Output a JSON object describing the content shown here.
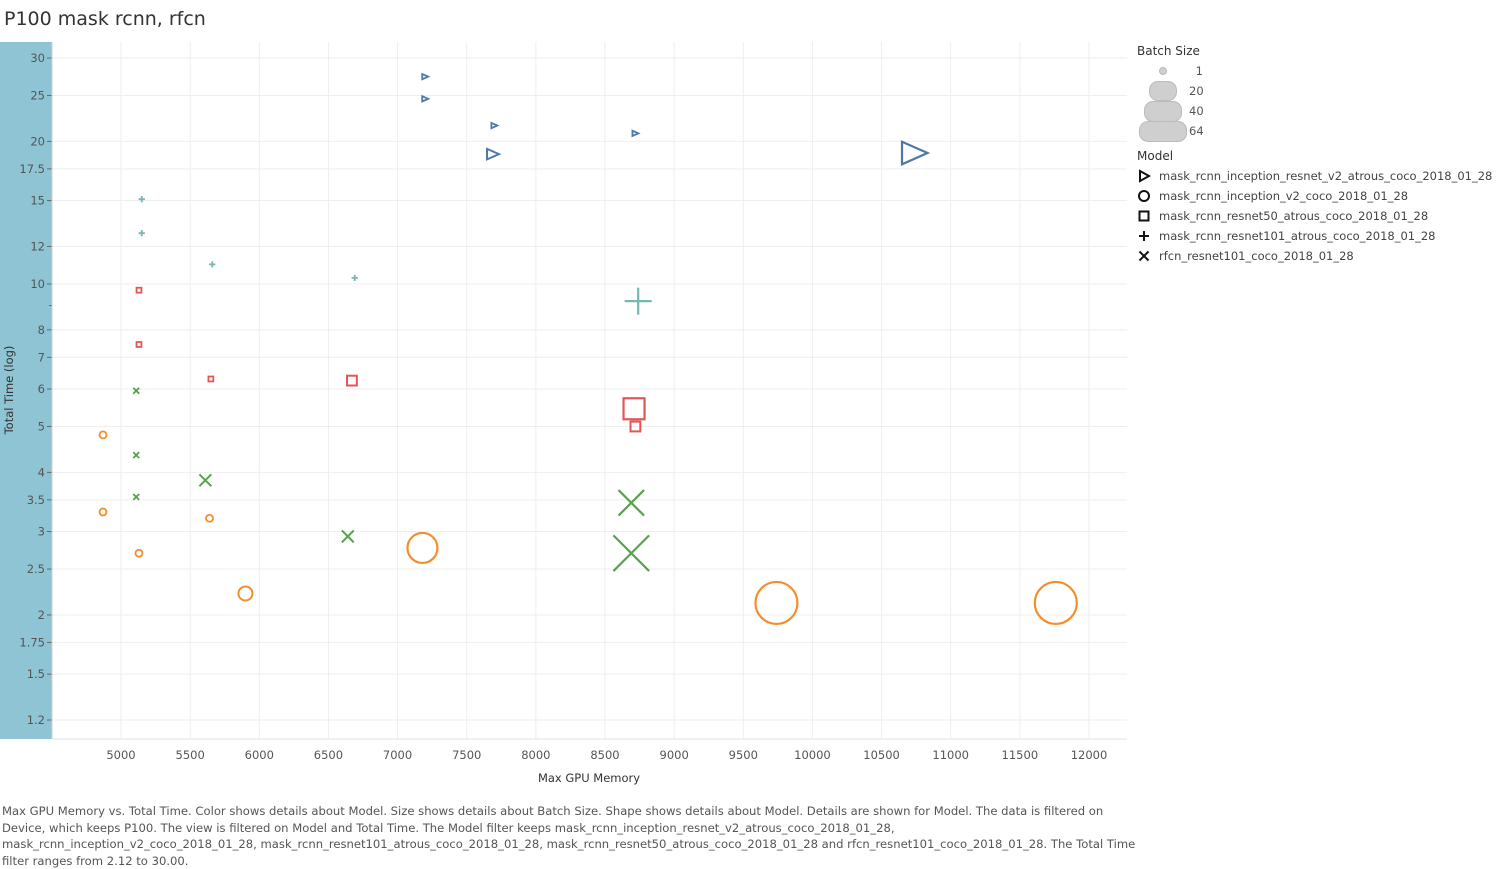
{
  "title": "P100 mask rcnn, rfcn",
  "legend": {
    "size_title": "Batch Size",
    "size_items": [
      "1",
      "20",
      "40",
      "64"
    ],
    "model_title": "Model",
    "models": [
      {
        "label": "mask_rcnn_inception_resnet_v2_atrous_coco_2018_01_28",
        "shape": "triangle-icon"
      },
      {
        "label": "mask_rcnn_inception_v2_coco_2018_01_28",
        "shape": "circle-icon"
      },
      {
        "label": "mask_rcnn_resnet50_atrous_coco_2018_01_28",
        "shape": "square-icon"
      },
      {
        "label": "mask_rcnn_resnet101_atrous_coco_2018_01_28",
        "shape": "plus-icon"
      },
      {
        "label": "rfcn_resnet101_coco_2018_01_28",
        "shape": "x-icon"
      }
    ]
  },
  "caption": "Max GPU Memory vs. Total Time.  Color shows details about Model.  Size shows details about Batch Size.  Shape shows details about Model.  Details are shown for Model. The data is filtered on Device, which keeps P100. The view is filtered on Model and Total Time. The Model filter keeps mask_rcnn_inception_resnet_v2_atrous_coco_2018_01_28, mask_rcnn_inception_v2_coco_2018_01_28, mask_rcnn_resnet101_atrous_coco_2018_01_28, mask_rcnn_resnet50_atrous_coco_2018_01_28 and rfcn_resnet101_coco_2018_01_28. The Total Time filter ranges from 2.12 to 30.00.",
  "colors": {
    "inception_resnet": "#4e79a7",
    "inception_v2": "#f28e2b",
    "resnet50": "#e15759",
    "resnet101": "#76b7b2",
    "rfcn": "#59a14f",
    "axis_band": "#8fc4d4"
  },
  "chart_data": {
    "type": "scatter",
    "title": "P100 mask rcnn, rfcn",
    "xlabel": "Max GPU Memory",
    "ylabel": "Total Time (log)",
    "y_scale": "log",
    "xlim": [
      4600,
      12300
    ],
    "ylim": [
      1.1,
      32
    ],
    "x_ticks": [
      5000,
      5500,
      6000,
      6500,
      7000,
      7500,
      8000,
      8500,
      9000,
      9500,
      10000,
      10500,
      11000,
      11500,
      12000
    ],
    "y_ticks": [
      1.2,
      1.5,
      1.75,
      2,
      2.5,
      3,
      3.5,
      4,
      5,
      6,
      7,
      8,
      10,
      12,
      15,
      17.5,
      20,
      25,
      30
    ],
    "grid": true,
    "legend_position": "right",
    "series": [
      {
        "name": "mask_rcnn_inception_resnet_v2_atrous_coco_2018_01_28",
        "shape": "triangle",
        "color": "#4e79a7",
        "points": [
          {
            "x": 7200,
            "y": 27.4,
            "batch": 1
          },
          {
            "x": 7200,
            "y": 24.6,
            "batch": 1
          },
          {
            "x": 7700,
            "y": 21.6,
            "batch": 1
          },
          {
            "x": 7690,
            "y": 18.8,
            "batch": 20
          },
          {
            "x": 8720,
            "y": 20.8,
            "batch": 1
          },
          {
            "x": 10740,
            "y": 18.9,
            "batch": 40
          }
        ]
      },
      {
        "name": "mask_rcnn_inception_v2_coco_2018_01_28",
        "shape": "circle",
        "color": "#f28e2b",
        "points": [
          {
            "x": 4870,
            "y": 4.8,
            "batch": 1
          },
          {
            "x": 4870,
            "y": 3.3,
            "batch": 1
          },
          {
            "x": 5130,
            "y": 2.7,
            "batch": 1
          },
          {
            "x": 5640,
            "y": 3.2,
            "batch": 1
          },
          {
            "x": 5900,
            "y": 2.22,
            "batch": 20
          },
          {
            "x": 7180,
            "y": 2.77,
            "batch": 40
          },
          {
            "x": 9740,
            "y": 2.12,
            "batch": 64
          },
          {
            "x": 11760,
            "y": 2.12,
            "batch": 64
          }
        ]
      },
      {
        "name": "mask_rcnn_resnet50_atrous_coco_2018_01_28",
        "shape": "square",
        "color": "#e15759",
        "points": [
          {
            "x": 5130,
            "y": 9.7,
            "batch": 1
          },
          {
            "x": 5130,
            "y": 7.45,
            "batch": 1
          },
          {
            "x": 5650,
            "y": 6.3,
            "batch": 1
          },
          {
            "x": 6670,
            "y": 6.25,
            "batch": 20
          },
          {
            "x": 8710,
            "y": 5.45,
            "batch": 40
          },
          {
            "x": 8720,
            "y": 5.0,
            "batch": 20
          }
        ]
      },
      {
        "name": "mask_rcnn_resnet101_atrous_coco_2018_01_28",
        "shape": "plus",
        "color": "#76b7b2",
        "points": [
          {
            "x": 5150,
            "y": 15.1,
            "batch": 1
          },
          {
            "x": 5150,
            "y": 12.8,
            "batch": 1
          },
          {
            "x": 5660,
            "y": 11.0,
            "batch": 1
          },
          {
            "x": 6690,
            "y": 10.3,
            "batch": 1
          },
          {
            "x": 8740,
            "y": 9.2,
            "batch": 40
          }
        ]
      },
      {
        "name": "rfcn_resnet101_coco_2018_01_28",
        "shape": "x",
        "color": "#59a14f",
        "points": [
          {
            "x": 5110,
            "y": 5.95,
            "batch": 1
          },
          {
            "x": 5110,
            "y": 4.35,
            "batch": 1
          },
          {
            "x": 5110,
            "y": 3.55,
            "batch": 1
          },
          {
            "x": 5610,
            "y": 3.85,
            "batch": 20
          },
          {
            "x": 6640,
            "y": 2.93,
            "batch": 20
          },
          {
            "x": 8690,
            "y": 3.45,
            "batch": 40
          },
          {
            "x": 8690,
            "y": 2.7,
            "batch": 64
          }
        ]
      }
    ]
  }
}
